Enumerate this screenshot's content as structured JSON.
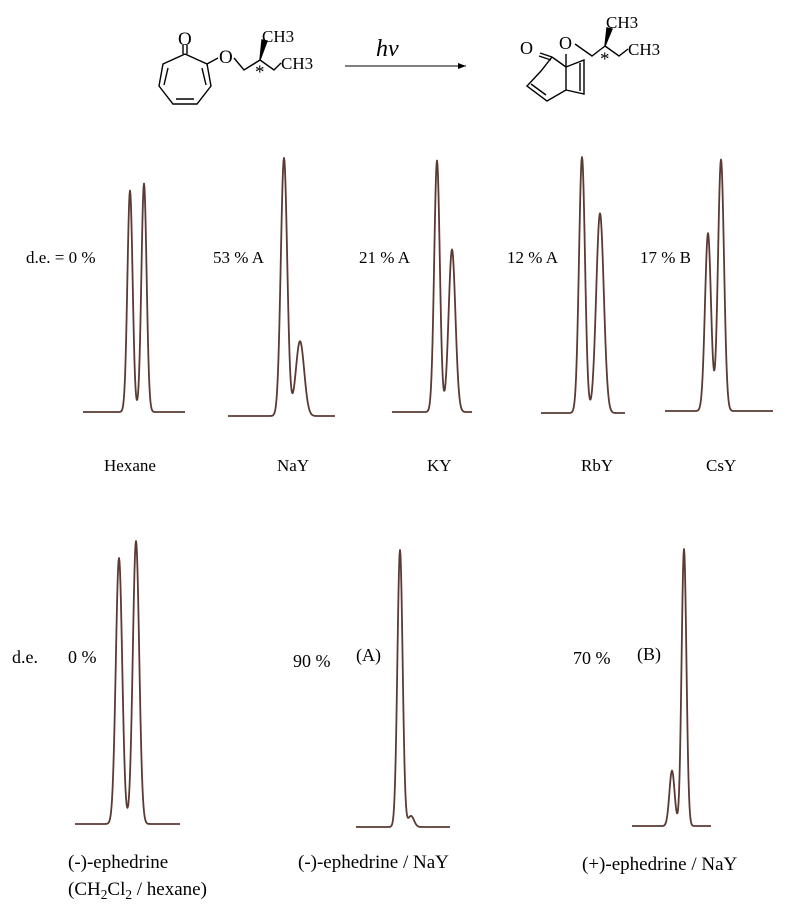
{
  "reaction": {
    "reactant": {
      "o_carbonyl": "O",
      "o_ether": "O",
      "ch3_top": "CH3",
      "ch3_end": "CH3",
      "stereo": "*"
    },
    "arrow_label": "hν",
    "product": {
      "o_carbonyl": "O",
      "o_ether": "O",
      "ch3_top": "CH3",
      "ch3_end": "CH3",
      "stereo": "*"
    }
  },
  "top_row": {
    "panels": [
      {
        "de_label": "d.e. = 0 %",
        "medium": "Hexane"
      },
      {
        "de_label": "53 % A",
        "medium": "NaY"
      },
      {
        "de_label": "21 % A",
        "medium": "KY"
      },
      {
        "de_label": "12 % A",
        "medium": "RbY"
      },
      {
        "de_label": "17 % B",
        "medium": "CsY"
      }
    ]
  },
  "bottom_row": {
    "row_label": "d.e.",
    "panels": [
      {
        "de_label": "0 %",
        "medium_line1": "(-)-ephedrine",
        "medium_line2_pre": "(CH",
        "medium_line2_sub1": "2",
        "medium_line2_mid": "Cl",
        "medium_line2_sub2": "2",
        "medium_line2_post": " / hexane)"
      },
      {
        "de_label": "90 %",
        "tag": "(A)",
        "medium_line1": "(-)-ephedrine / NaY"
      },
      {
        "de_label": "70 %",
        "tag": "(B)",
        "medium_line1": "(+)-ephedrine / NaY"
      }
    ]
  },
  "chart_data": [
    {
      "type": "chromatogram",
      "name_medium": "Hexane",
      "de_percent": 0,
      "peaks": [
        {
          "rel_height": 0.93
        },
        {
          "rel_height": 0.96
        }
      ]
    },
    {
      "type": "chromatogram",
      "name_medium": "NaY",
      "de_percent": 53,
      "excess": "A",
      "peaks": [
        {
          "rel_height": 1.0
        },
        {
          "rel_height": 0.29
        }
      ]
    },
    {
      "type": "chromatogram",
      "name_medium": "KY",
      "de_percent": 21,
      "excess": "A",
      "peaks": [
        {
          "rel_height": 0.99
        },
        {
          "rel_height": 0.64
        }
      ]
    },
    {
      "type": "chromatogram",
      "name_medium": "RbY",
      "de_percent": 12,
      "excess": "A",
      "peaks": [
        {
          "rel_height": 1.0
        },
        {
          "rel_height": 0.78
        }
      ]
    },
    {
      "type": "chromatogram",
      "name_medium": "CsY",
      "de_percent": 17,
      "excess": "B",
      "peaks": [
        {
          "rel_height": 0.7
        },
        {
          "rel_height": 0.99
        }
      ]
    },
    {
      "type": "chromatogram",
      "name_medium": "(-)-ephedrine (CH2Cl2 / hexane)",
      "de_percent": 0,
      "peaks": [
        {
          "rel_height": 0.94
        },
        {
          "rel_height": 1.0
        }
      ]
    },
    {
      "type": "chromatogram",
      "name_medium": "(-)-ephedrine / NaY",
      "de_percent": 90,
      "excess": "A",
      "peaks": [
        {
          "rel_height": 1.0
        },
        {
          "rel_height": 0.04
        }
      ]
    },
    {
      "type": "chromatogram",
      "name_medium": "(+)-ephedrine / NaY",
      "de_percent": 70,
      "excess": "B",
      "peaks": [
        {
          "rel_height": 0.2
        },
        {
          "rel_height": 1.0
        }
      ]
    }
  ]
}
